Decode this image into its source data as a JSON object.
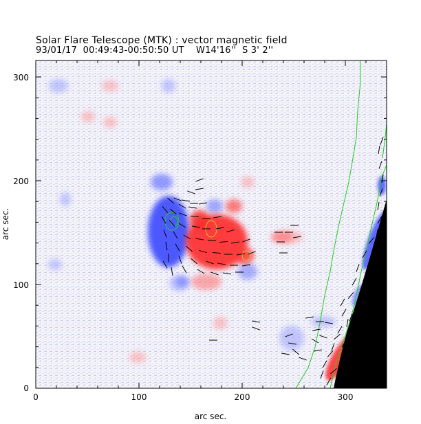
{
  "title": {
    "line1": "Solar Flare Telescope (MTK) : vector magnetic field",
    "line2": "93/01/17  00:49:43-00:50:50 UT    W14'16''  S 3' 2''"
  },
  "axes": {
    "xlabel": "arc sec.",
    "ylabel": "arc sec.",
    "x_ticks": [
      0,
      100,
      200,
      300
    ],
    "y_ticks": [
      0,
      100,
      200,
      300
    ],
    "xlim": [
      0,
      340
    ],
    "ylim": [
      0,
      315
    ]
  },
  "colors": {
    "positive_polarity": "#ff2a2a",
    "negative_polarity": "#2a3cff",
    "contour": "#22cc22",
    "limb_outside": "#000000",
    "vectors": "#000000"
  }
}
